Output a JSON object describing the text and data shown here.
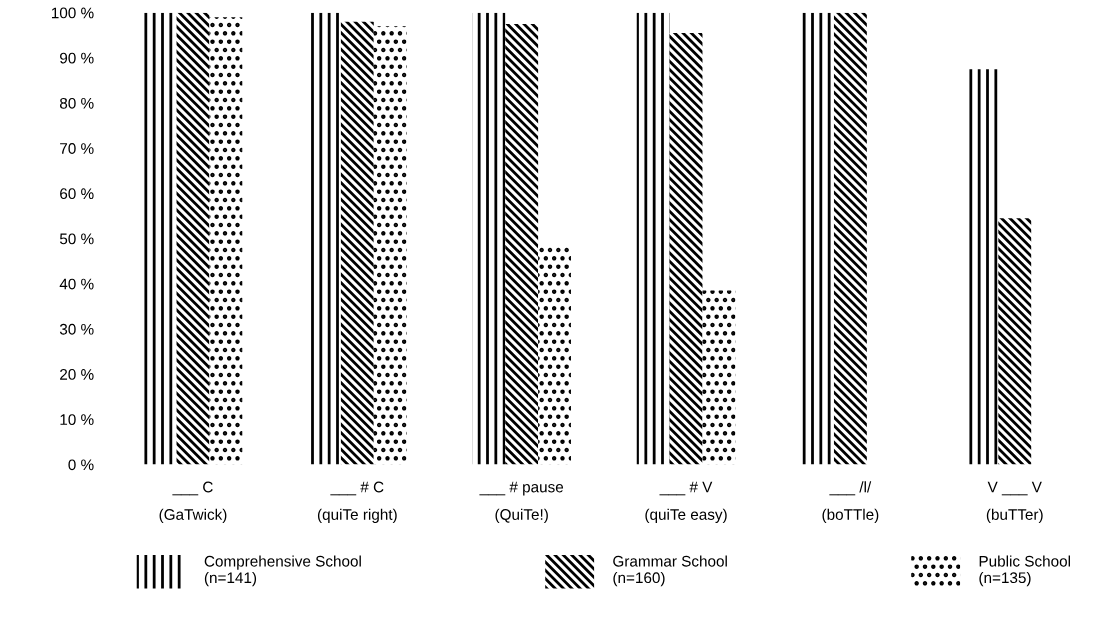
{
  "chart_data": {
    "type": "bar",
    "categories": [
      "___ C\n(GaTwick)",
      "___ # C\n(quiTe right)",
      "___ # pause\n(QuiTe!)",
      "___ # V\n(quiTe easy)",
      "___ /l/\n(boTTle)",
      "V ___ V\n(buTTer)"
    ],
    "series": [
      {
        "name": "Comprehensive School\n(n=141)",
        "color": "#000000",
        "values": [
          100,
          100,
          100,
          100,
          100,
          87.5
        ]
      },
      {
        "name": "Grammar School\n(n=160)",
        "color": "#000000",
        "values": [
          100,
          98,
          97.5,
          95.5,
          100,
          54.5
        ]
      },
      {
        "name": "Public School\n(n=135)",
        "color": "#000000",
        "values": [
          99,
          97,
          48.5,
          38.5,
          0,
          0
        ]
      }
    ],
    "ylim": [
      0,
      100
    ],
    "yticks": [
      {
        "value": 0,
        "label": "0 %"
      },
      {
        "value": 10,
        "label": "10 %"
      },
      {
        "value": 20,
        "label": "20 %"
      },
      {
        "value": 30,
        "label": "30 %"
      },
      {
        "value": 40,
        "label": "40 %"
      },
      {
        "value": 50,
        "label": "50 %"
      },
      {
        "value": 60,
        "label": "60 %"
      },
      {
        "value": 70,
        "label": "70 %"
      },
      {
        "value": 80,
        "label": "80 %"
      },
      {
        "value": 90,
        "label": "90 %"
      },
      {
        "value": 100,
        "label": "100 %"
      }
    ],
    "grid": false,
    "legend": "bottom"
  }
}
